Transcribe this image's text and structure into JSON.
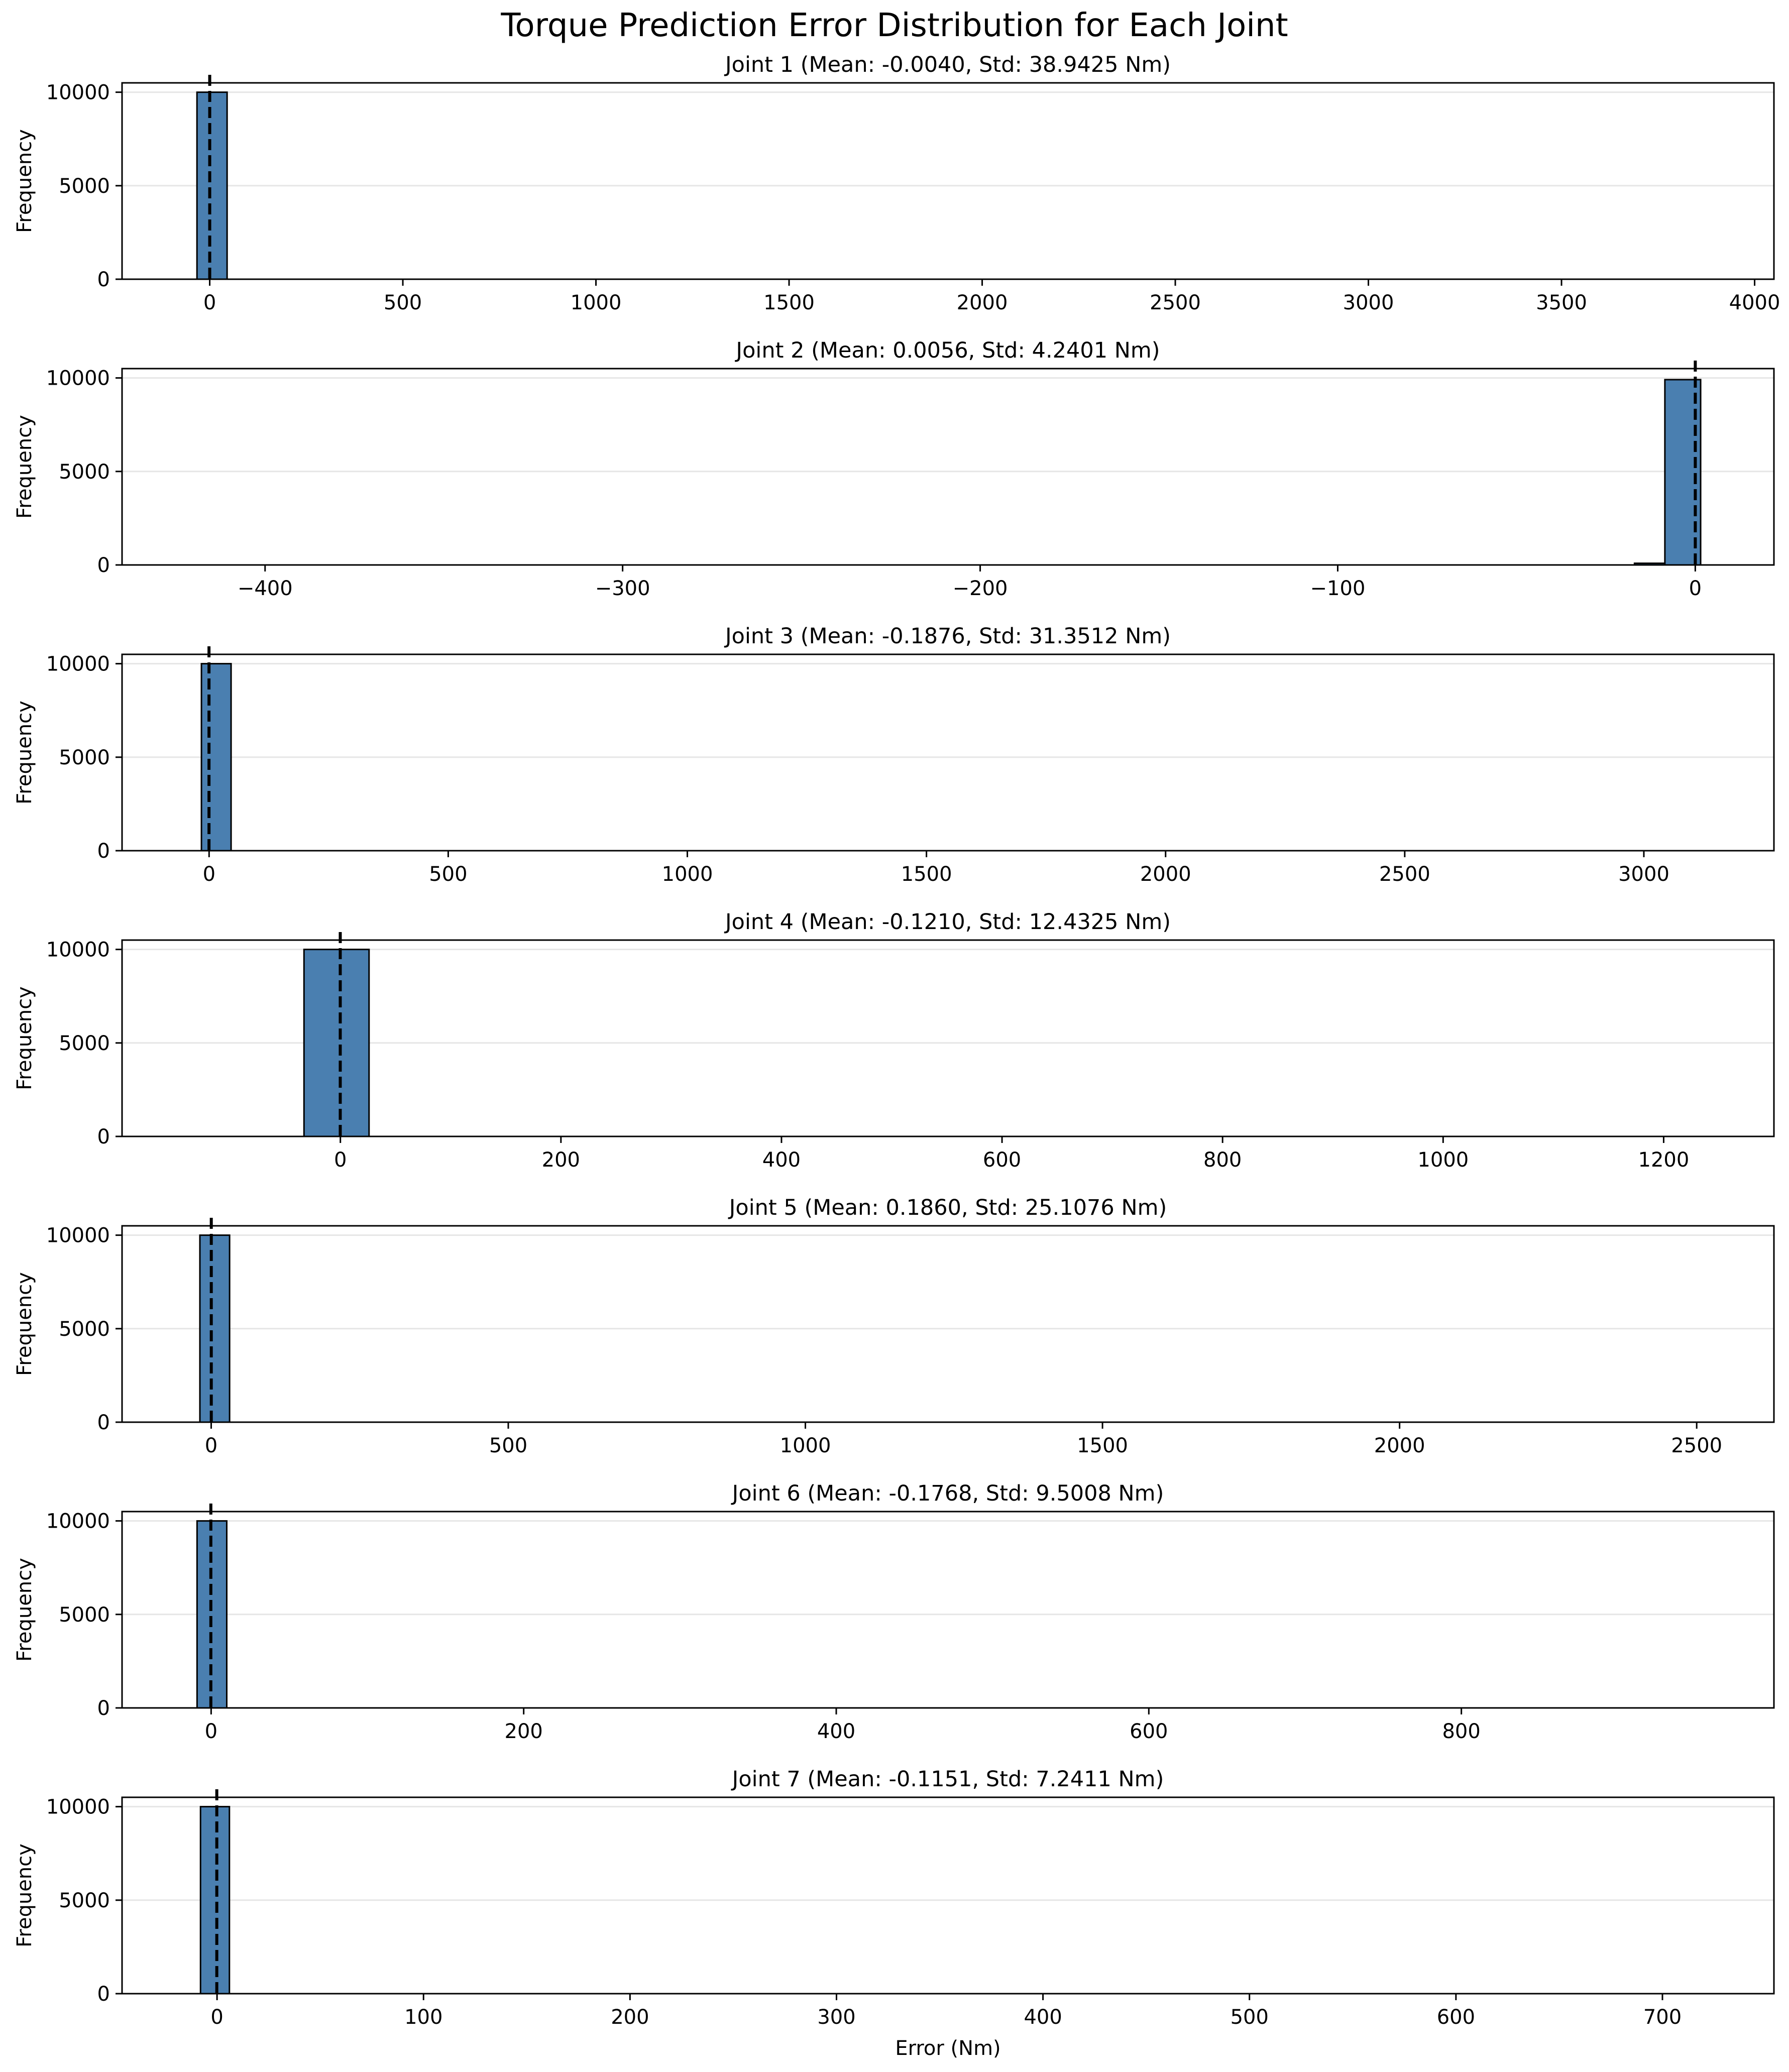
{
  "title": "Torque Prediction Error Distribution for Each Joint",
  "colors": {
    "bar": "#4a7fb0",
    "bar_edge": "#000000",
    "mean_line": "#000000",
    "grid": "#e6e6e6"
  },
  "chart_data": [
    {
      "type": "bar",
      "title": "Joint 1 (Mean: -0.0040, Std: 38.9425 Nm)",
      "xlabel": "",
      "ylabel": "Frequency",
      "xlim": [
        -227,
        4050
      ],
      "ylim": [
        0,
        10500
      ],
      "xticks": [
        0,
        500,
        1000,
        1500,
        2000,
        2500,
        3000,
        3500,
        4000
      ],
      "xtick_labels": [
        "0",
        "500",
        "1000",
        "1500",
        "2000",
        "2500",
        "3000",
        "3500",
        "4000"
      ],
      "yticks": [
        0,
        5000,
        10000
      ],
      "ytick_labels": [
        "0",
        "5000",
        "10000"
      ],
      "grid": "y",
      "bins": [
        {
          "x0": -33,
          "x1": 45,
          "count": 10000
        }
      ],
      "hist_range": [
        -33,
        3870
      ],
      "mean": -0.004
    },
    {
      "type": "bar",
      "title": "Joint 2 (Mean: 0.0056, Std: 4.2401 Nm)",
      "xlabel": "",
      "ylabel": "Frequency",
      "xlim": [
        -440,
        22
      ],
      "ylim": [
        0,
        10500
      ],
      "xticks": [
        -400,
        -300,
        -200,
        -100,
        0
      ],
      "xtick_labels": [
        "−400",
        "−300",
        "−200",
        "−100",
        "0"
      ],
      "yticks": [
        0,
        5000,
        10000
      ],
      "ytick_labels": [
        "0",
        "5000",
        "10000"
      ],
      "grid": "y",
      "bins": [
        {
          "x0": -17,
          "x1": -8.5,
          "count": 90
        },
        {
          "x0": -8.5,
          "x1": 1.5,
          "count": 9910
        }
      ],
      "hist_range": [
        -419,
        1.5
      ],
      "mean": 0.0056
    },
    {
      "type": "bar",
      "title": "Joint 3 (Mean: -0.1876, Std: 31.3512 Nm)",
      "xlabel": "",
      "ylabel": "Frequency",
      "xlim": [
        -182,
        3272
      ],
      "ylim": [
        0,
        10500
      ],
      "xticks": [
        0,
        500,
        1000,
        1500,
        2000,
        2500,
        3000
      ],
      "xtick_labels": [
        "0",
        "500",
        "1000",
        "1500",
        "2000",
        "2500",
        "3000"
      ],
      "yticks": [
        0,
        5000,
        10000
      ],
      "ytick_labels": [
        "0",
        "5000",
        "10000"
      ],
      "grid": "y",
      "bins": [
        {
          "x0": -16,
          "x1": 46,
          "count": 10000
        }
      ],
      "hist_range": [
        -16,
        3125
      ],
      "mean": -0.1876
    },
    {
      "type": "bar",
      "title": "Joint 4 (Mean: -0.1210, Std: 12.4325 Nm)",
      "xlabel": "",
      "ylabel": "Frequency",
      "xlim": [
        -198,
        1300
      ],
      "ylim": [
        0,
        10500
      ],
      "xticks": [
        0,
        200,
        400,
        600,
        800,
        1000,
        1200
      ],
      "xtick_labels": [
        "0",
        "200",
        "400",
        "600",
        "800",
        "1000",
        "1200"
      ],
      "yticks": [
        0,
        5000,
        10000
      ],
      "ytick_labels": [
        "0",
        "5000",
        "10000"
      ],
      "grid": "y",
      "bins": [
        {
          "x0": -33,
          "x1": 26,
          "count": 10000
        }
      ],
      "hist_range": [
        -33,
        1240
      ],
      "mean": -0.121
    },
    {
      "type": "bar",
      "title": "Joint 5 (Mean: 0.1860, Std: 25.1076 Nm)",
      "xlabel": "",
      "ylabel": "Frequency",
      "xlim": [
        -150,
        2630
      ],
      "ylim": [
        0,
        10500
      ],
      "xticks": [
        0,
        500,
        1000,
        1500,
        2000,
        2500
      ],
      "xtick_labels": [
        "0",
        "500",
        "1000",
        "1500",
        "2000",
        "2500"
      ],
      "yticks": [
        0,
        5000,
        10000
      ],
      "ytick_labels": [
        "0",
        "5000",
        "10000"
      ],
      "grid": "y",
      "bins": [
        {
          "x0": -19,
          "x1": 31,
          "count": 10000
        }
      ],
      "hist_range": [
        -19,
        2515
      ],
      "mean": 0.186
    },
    {
      "type": "bar",
      "title": "Joint 6 (Mean: -0.1768, Std: 9.5008 Nm)",
      "xlabel": "",
      "ylabel": "Frequency",
      "xlim": [
        -57,
        1000
      ],
      "ylim": [
        0,
        10500
      ],
      "xticks": [
        0,
        200,
        400,
        600,
        800
      ],
      "xtick_labels": [
        "0",
        "200",
        "400",
        "600",
        "800"
      ],
      "yticks": [
        0,
        5000,
        10000
      ],
      "ytick_labels": [
        "0",
        "5000",
        "10000"
      ],
      "grid": "y",
      "bins": [
        {
          "x0": -9,
          "x1": 10,
          "count": 10000
        }
      ],
      "hist_range": [
        -9,
        947
      ],
      "mean": -0.1768
    },
    {
      "type": "bar",
      "title": "Joint 7 (Mean: -0.1151, Std: 7.2411 Nm)",
      "xlabel": "Error (Nm)",
      "ylabel": "Frequency",
      "xlim": [
        -46,
        754
      ],
      "ylim": [
        0,
        10500
      ],
      "xticks": [
        0,
        100,
        200,
        300,
        400,
        500,
        600,
        700
      ],
      "xtick_labels": [
        "0",
        "100",
        "200",
        "300",
        "400",
        "500",
        "600",
        "700"
      ],
      "yticks": [
        0,
        5000,
        10000
      ],
      "ytick_labels": [
        "0",
        "5000",
        "10000"
      ],
      "grid": "y",
      "bins": [
        {
          "x0": -8,
          "x1": 6,
          "count": 10000
        }
      ],
      "hist_range": [
        -8,
        717
      ],
      "mean": -0.1151
    }
  ]
}
